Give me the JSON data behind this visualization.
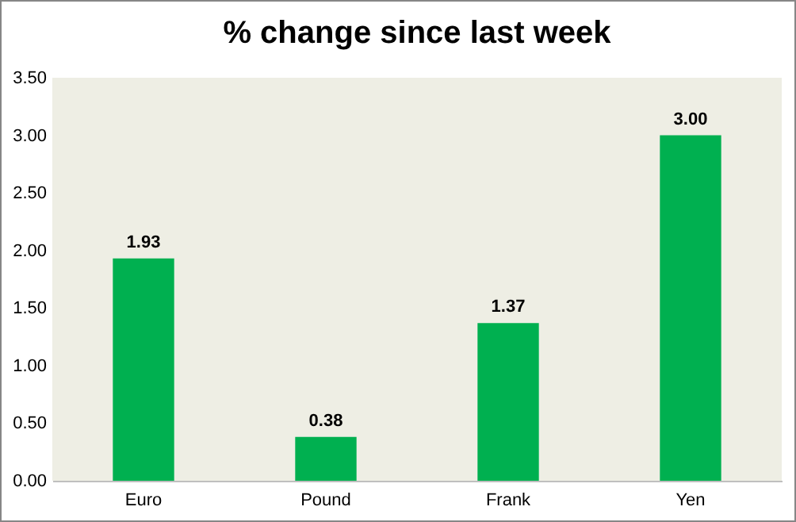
{
  "chart_data": {
    "type": "bar",
    "title": "% change since last week",
    "categories": [
      "Euro",
      "Pound",
      "Frank",
      "Yen"
    ],
    "values": [
      1.93,
      0.38,
      1.37,
      3.0
    ],
    "color": "#00b050",
    "ylim": [
      0,
      3.5
    ],
    "yticks": [
      {
        "value": 0,
        "label": "0.00"
      },
      {
        "value": 0.5,
        "label": "0.50"
      },
      {
        "value": 1,
        "label": "1.00"
      },
      {
        "value": 1.5,
        "label": "1.50"
      },
      {
        "value": 2,
        "label": "2.00"
      },
      {
        "value": 2.5,
        "label": "2.50"
      },
      {
        "value": 3,
        "label": "3.00"
      },
      {
        "value": 3.5,
        "label": "3.50"
      }
    ],
    "value_labels": [
      "1.93",
      "0.38",
      "1.37",
      "3.00"
    ],
    "grid": false
  }
}
